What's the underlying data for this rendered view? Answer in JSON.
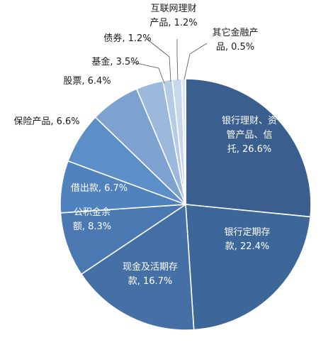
{
  "chart_data": {
    "type": "pie",
    "slices": [
      {
        "label": "银行理财、资管产品、信托",
        "value": 26.6,
        "display": [
          "银行理财、资",
          "管产品、信",
          "托, 26.6%"
        ],
        "color": "#3a5f8f"
      },
      {
        "label": "银行定期存款",
        "value": 22.4,
        "display": [
          "银行定期存",
          "款, 22.4%"
        ],
        "color": "#3d6699"
      },
      {
        "label": "现金及活期存款",
        "value": 16.7,
        "display": [
          "现金及活期存",
          "款, 16.7%"
        ],
        "color": "#4470a6"
      },
      {
        "label": "公积金余额",
        "value": 8.3,
        "display": [
          "公积金余",
          "额, 8.3%"
        ],
        "color": "#4a79b2"
      },
      {
        "label": "借出款",
        "value": 6.7,
        "display": [
          "借出款, 6.7%"
        ],
        "color": "#5083bd"
      },
      {
        "label": "保险产品",
        "value": 6.6,
        "display": [
          "保险产品, 6.6%"
        ],
        "color": "#5c8ec8"
      },
      {
        "label": "股票",
        "value": 6.4,
        "display": [
          "股票, 6.4%"
        ],
        "color": "#7ea2d0"
      },
      {
        "label": "基金",
        "value": 3.5,
        "display": [
          "基金, 3.5%"
        ],
        "color": "#9cb8dc"
      },
      {
        "label": "债券",
        "value": 1.2,
        "display": [
          "债券, 1.2%"
        ],
        "color": "#b5cae5"
      },
      {
        "label": "互联网理财产品",
        "value": 1.2,
        "display": [
          "互联网理财",
          "产品, 1.2%"
        ],
        "color": "#c8d7ec"
      },
      {
        "label": "其它金融产品",
        "value": 0.5,
        "display": [
          "其它金融产",
          "品, 0.5%"
        ],
        "color": "#dae4f2"
      }
    ]
  }
}
